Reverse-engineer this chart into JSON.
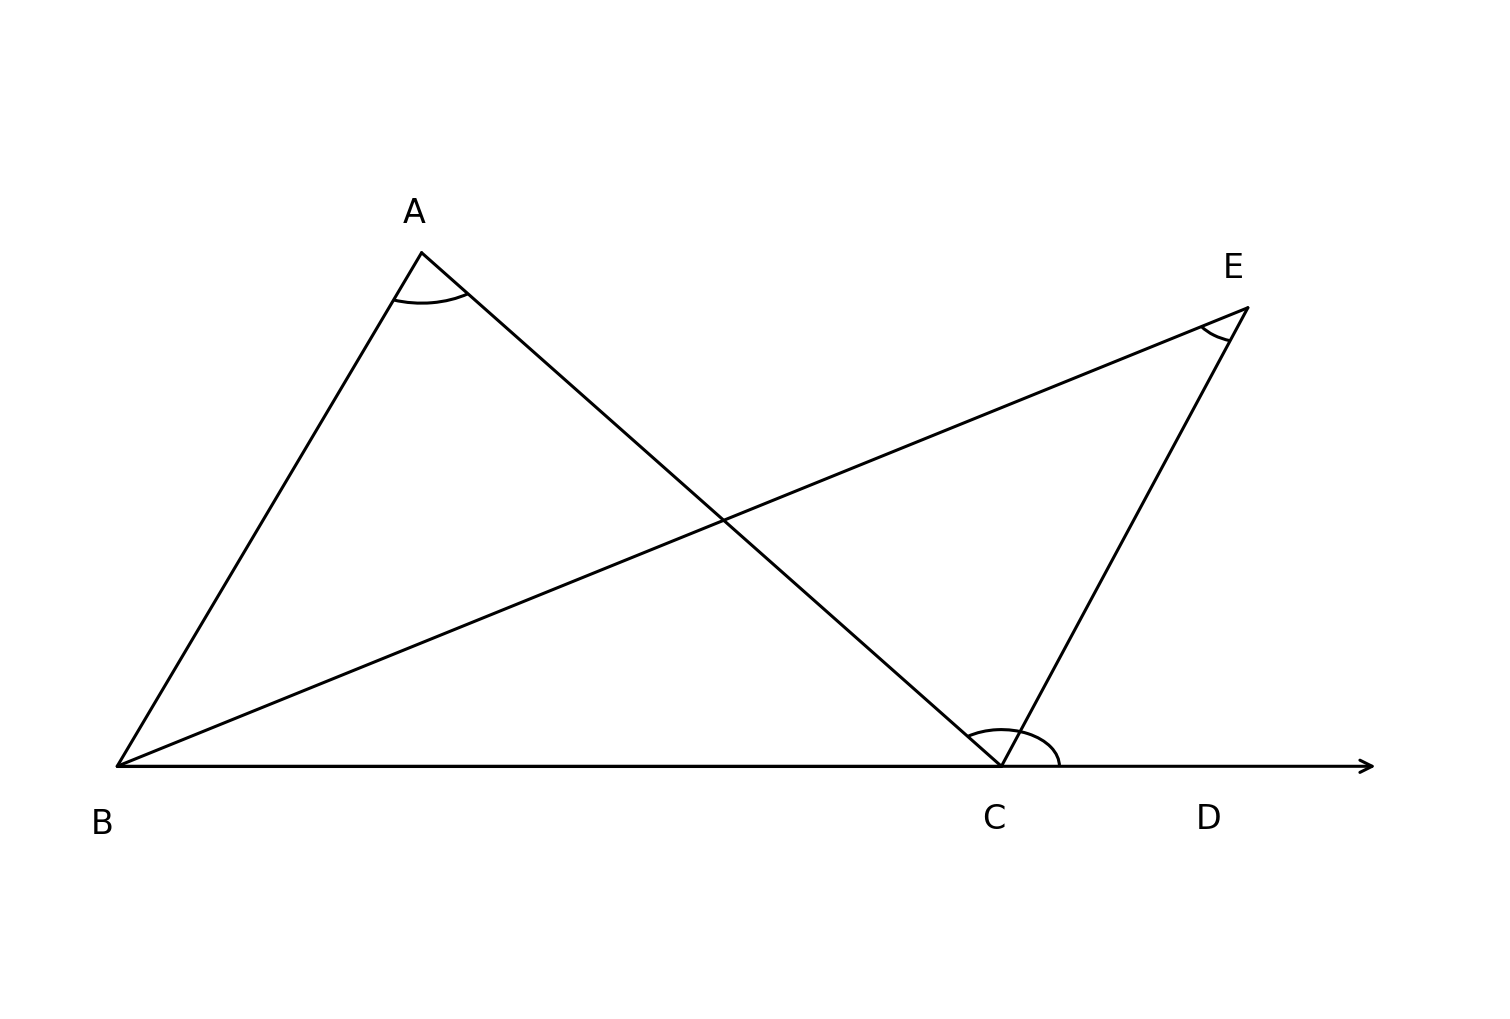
{
  "B": [
    0.06,
    0.22
  ],
  "A": [
    0.27,
    0.78
  ],
  "C": [
    0.67,
    0.22
  ],
  "D_arrow": [
    0.93,
    0.22
  ],
  "E": [
    0.84,
    0.72
  ],
  "label_B": "B",
  "label_A": "A",
  "label_C": "C",
  "label_D": "D",
  "label_E": "E",
  "background_color": "#FFFFFF",
  "line_color": "#000000",
  "line_width": 2.2,
  "fontsize": 24,
  "fig_width": 15.1,
  "fig_height": 10.19,
  "xlim": [
    0.0,
    1.0
  ],
  "ylim": [
    0.0,
    1.0
  ]
}
